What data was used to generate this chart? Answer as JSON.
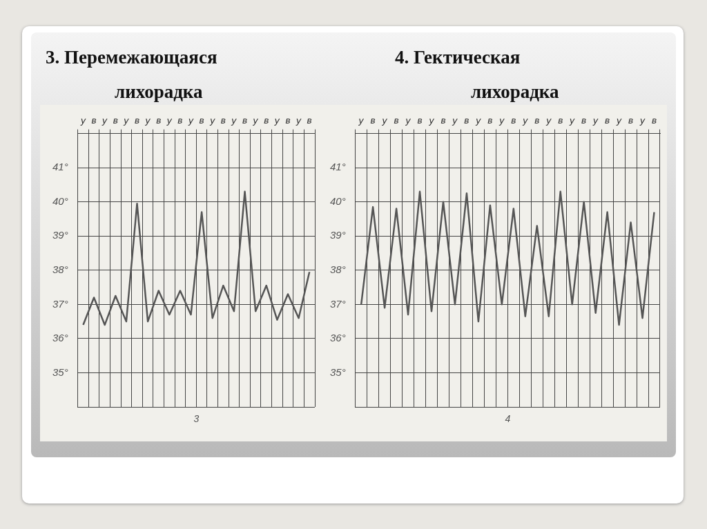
{
  "chart_data": [
    {
      "type": "line",
      "title": "3. Перемежающаяся лихорадка",
      "categories": [
        "у",
        "в",
        "у",
        "в",
        "у",
        "в",
        "у",
        "в",
        "у",
        "в",
        "у",
        "в",
        "у",
        "в",
        "у",
        "в",
        "у",
        "в",
        "у",
        "в",
        "у",
        "в"
      ],
      "series": [
        {
          "color": "#555555",
          "values": [
            36.4,
            37.2,
            36.4,
            37.25,
            36.5,
            39.95,
            36.5,
            37.4,
            36.7,
            37.4,
            36.7,
            39.7,
            36.6,
            37.55,
            36.8,
            40.3,
            36.8,
            37.55,
            36.55,
            37.3,
            36.6,
            37.95
          ]
        }
      ],
      "ylim": [
        34,
        42
      ],
      "yticks": [
        {
          "value": 34,
          "label": null
        },
        {
          "value": 35,
          "label": "35°"
        },
        {
          "value": 36,
          "label": "36°"
        },
        {
          "value": 37,
          "label": "37°"
        },
        {
          "value": 38,
          "label": "38°"
        },
        {
          "value": 39,
          "label": "39°"
        },
        {
          "value": 40,
          "label": "40°"
        },
        {
          "value": 41,
          "label": "41°"
        },
        {
          "value": 42,
          "label": null
        }
      ],
      "grid": true,
      "legend": false,
      "marker": "none",
      "line_style": "solid",
      "annotations": [
        "3"
      ]
    },
    {
      "type": "line",
      "title": "4. Гектическая лихорадка",
      "categories": [
        "у",
        "в",
        "у",
        "в",
        "у",
        "в",
        "у",
        "в",
        "у",
        "в",
        "у",
        "в",
        "у",
        "в",
        "у",
        "в",
        "у",
        "в",
        "у",
        "в",
        "у",
        "в",
        "у",
        "в",
        "у",
        "в"
      ],
      "series": [
        {
          "color": "#555555",
          "values": [
            37.0,
            39.85,
            36.9,
            39.8,
            36.7,
            40.3,
            36.8,
            40.0,
            37.0,
            40.25,
            36.5,
            39.9,
            37.0,
            39.8,
            36.65,
            39.3,
            36.65,
            40.3,
            37.0,
            40.0,
            36.75,
            39.7,
            36.4,
            39.4,
            36.6,
            39.7
          ]
        }
      ],
      "ylim": [
        34,
        42
      ],
      "yticks": [
        {
          "value": 34,
          "label": null
        },
        {
          "value": 35,
          "label": "35°"
        },
        {
          "value": 36,
          "label": "36°"
        },
        {
          "value": 37,
          "label": "37°"
        },
        {
          "value": 38,
          "label": "38°"
        },
        {
          "value": 39,
          "label": "39°"
        },
        {
          "value": 40,
          "label": "40°"
        },
        {
          "value": 41,
          "label": "41°"
        },
        {
          "value": 42,
          "label": null
        }
      ],
      "grid": true,
      "legend": false,
      "marker": "none",
      "line_style": "solid",
      "annotations": [
        "4"
      ]
    }
  ]
}
